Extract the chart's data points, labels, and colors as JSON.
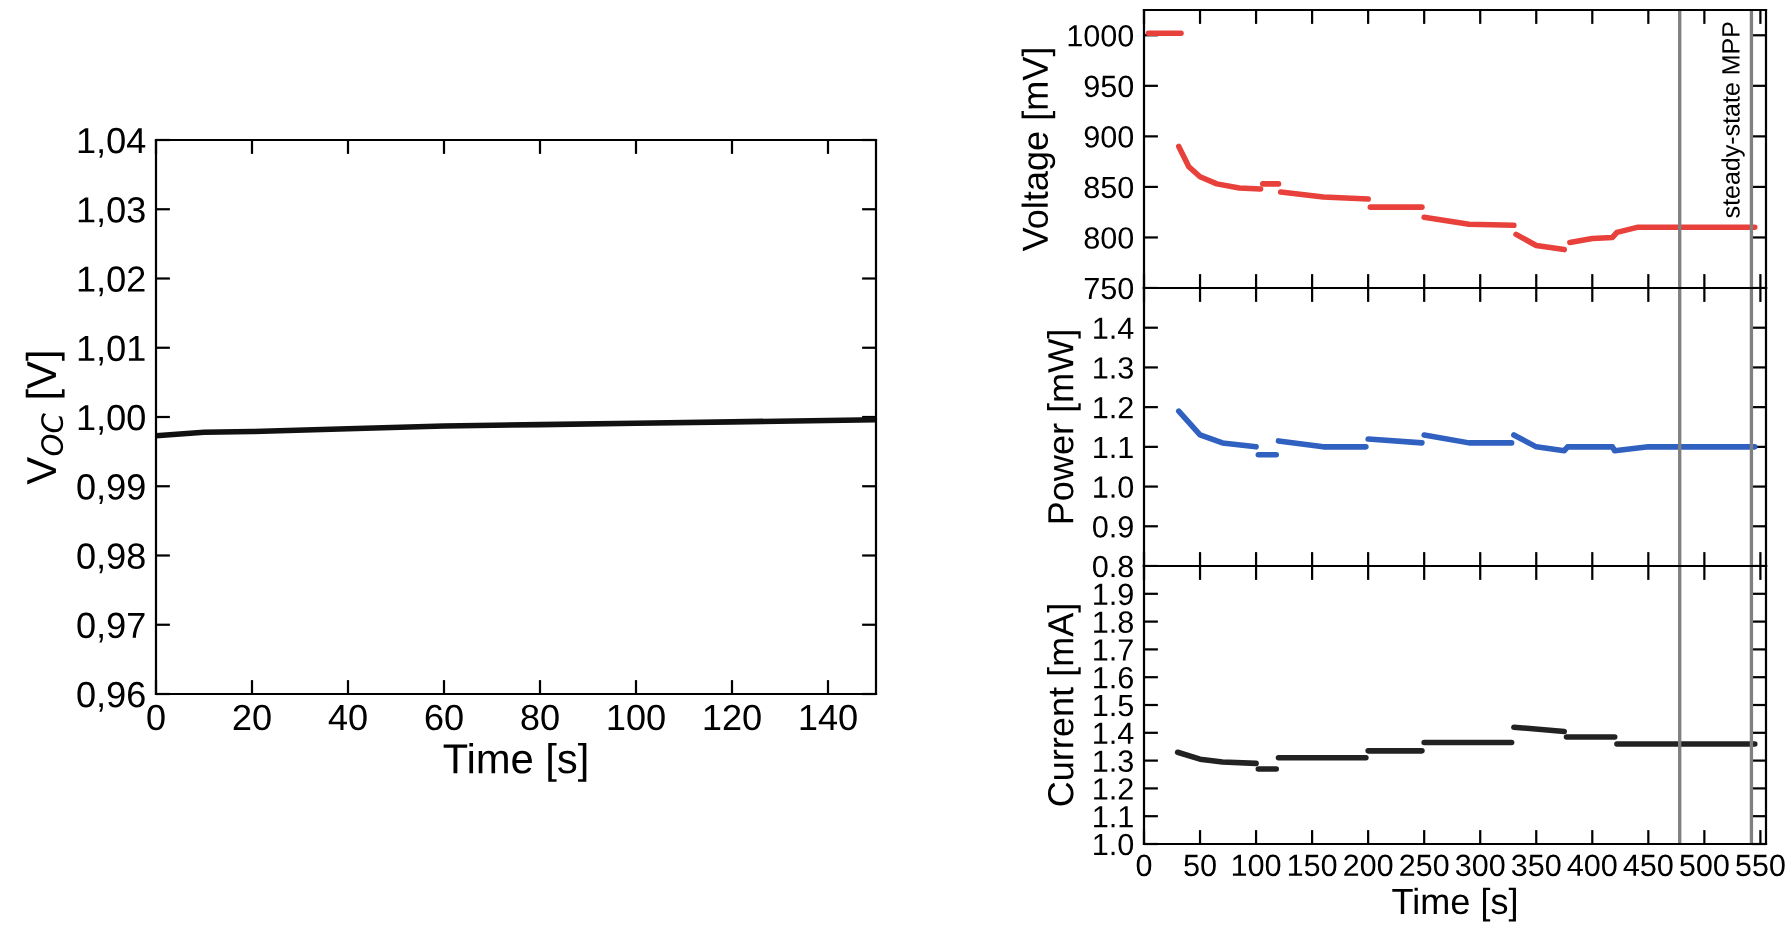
{
  "chart_data": [
    {
      "type": "line",
      "xlabel": "Time [s]",
      "ylabel": "V$_{OC}$ [V]",
      "xlim": [
        0,
        150
      ],
      "xticks": [
        0,
        20,
        40,
        60,
        80,
        100,
        120,
        140
      ],
      "ylim": [
        0.96,
        1.04
      ],
      "yticks": [
        {
          "value": 0.96,
          "label": "0,96"
        },
        {
          "value": 0.97,
          "label": "0,97"
        },
        {
          "value": 0.98,
          "label": "0,98"
        },
        {
          "value": 0.99,
          "label": "0,99"
        },
        {
          "value": 1.0,
          "label": "1,00"
        },
        {
          "value": 1.01,
          "label": "1,01"
        },
        {
          "value": 1.02,
          "label": "1,02"
        },
        {
          "value": 1.03,
          "label": "1,03"
        },
        {
          "value": 1.04,
          "label": "1,04"
        }
      ],
      "series": [
        {
          "color": "#111111",
          "x": [
            0,
            10,
            20,
            40,
            60,
            80,
            100,
            120,
            150
          ],
          "values": [
            0.9973,
            0.9978,
            0.9979,
            0.9983,
            0.9987,
            0.9989,
            0.9991,
            0.9993,
            0.9996
          ]
        }
      ]
    },
    {
      "type": "line",
      "ylabel": "Voltage [mV]",
      "xlim": [
        0,
        555
      ],
      "xticks": [
        0,
        50,
        100,
        150,
        200,
        250,
        300,
        350,
        400,
        450,
        500,
        550
      ],
      "ylim": [
        750,
        1025
      ],
      "yticks": [
        750,
        800,
        850,
        900,
        950,
        1000
      ],
      "tick_labels": "y",
      "ref_lines": [
        {
          "axis": "x",
          "value": 478,
          "color": "#808080"
        },
        {
          "axis": "x",
          "value": 542,
          "color": "#808080",
          "label": "steady-state MPP"
        }
      ],
      "series": [
        {
          "color": "#e8403a",
          "x": [
            4,
            33
          ],
          "values": [
            1002,
            1002
          ]
        },
        {
          "color": "#e8403a",
          "x": [
            31,
            40,
            50,
            65,
            85,
            104
          ],
          "values": [
            890,
            870,
            860,
            853,
            849,
            848
          ]
        },
        {
          "color": "#e8403a",
          "x": [
            106,
            120
          ],
          "values": [
            853,
            853
          ]
        },
        {
          "color": "#e8403a",
          "x": [
            122,
            160,
            200
          ],
          "values": [
            845,
            840,
            838
          ]
        },
        {
          "color": "#e8403a",
          "x": [
            202,
            248
          ],
          "values": [
            830,
            830
          ]
        },
        {
          "color": "#e8403a",
          "x": [
            250,
            290,
            330
          ],
          "values": [
            820,
            813,
            812
          ]
        },
        {
          "color": "#e8403a",
          "x": [
            332,
            350,
            375
          ],
          "values": [
            803,
            792,
            788
          ]
        },
        {
          "color": "#e8403a",
          "x": [
            380,
            400,
            418,
            422,
            440,
            545
          ],
          "values": [
            795,
            799,
            800,
            805,
            810,
            810
          ]
        }
      ]
    },
    {
      "type": "line",
      "ylabel": "Power [mW]",
      "xlim": [
        0,
        555
      ],
      "xticks": [
        0,
        50,
        100,
        150,
        200,
        250,
        300,
        350,
        400,
        450,
        500,
        550
      ],
      "ylim": [
        0.8,
        1.5
      ],
      "yticks": [
        {
          "value": 0.8,
          "label": "0.8"
        },
        {
          "value": 0.9,
          "label": "0.9"
        },
        {
          "value": 1.0,
          "label": "1.0"
        },
        {
          "value": 1.1,
          "label": "1.1"
        },
        {
          "value": 1.2,
          "label": "1.2"
        },
        {
          "value": 1.3,
          "label": "1.3"
        },
        {
          "value": 1.4,
          "label": "1.4"
        }
      ],
      "tick_labels": "y",
      "ref_lines": [
        {
          "axis": "x",
          "value": 478,
          "color": "#808080"
        },
        {
          "axis": "x",
          "value": 542,
          "color": "#808080"
        }
      ],
      "series": [
        {
          "color": "#3060c0",
          "x": [
            31,
            50,
            70,
            100
          ],
          "values": [
            1.19,
            1.13,
            1.11,
            1.1
          ]
        },
        {
          "color": "#3060c0",
          "x": [
            102,
            118
          ],
          "values": [
            1.08,
            1.08
          ]
        },
        {
          "color": "#3060c0",
          "x": [
            120,
            160,
            198
          ],
          "values": [
            1.115,
            1.1,
            1.1
          ]
        },
        {
          "color": "#3060c0",
          "x": [
            200,
            248
          ],
          "values": [
            1.12,
            1.11
          ]
        },
        {
          "color": "#3060c0",
          "x": [
            250,
            290,
            328
          ],
          "values": [
            1.13,
            1.11,
            1.11
          ]
        },
        {
          "color": "#3060c0",
          "x": [
            330,
            350,
            375,
            378,
            400,
            418,
            420,
            450,
            545
          ],
          "values": [
            1.13,
            1.1,
            1.09,
            1.1,
            1.1,
            1.1,
            1.09,
            1.1,
            1.1
          ]
        }
      ]
    },
    {
      "type": "line",
      "xlabel": "Time [s]",
      "ylabel": "Current [mA]",
      "xlim": [
        0,
        555
      ],
      "xticks": [
        0,
        50,
        100,
        150,
        200,
        250,
        300,
        350,
        400,
        450,
        500,
        550
      ],
      "ylim": [
        1.0,
        2.0
      ],
      "yticks": [
        {
          "value": 1.0,
          "label": "1.0"
        },
        {
          "value": 1.1,
          "label": "1.1"
        },
        {
          "value": 1.2,
          "label": "1.2"
        },
        {
          "value": 1.3,
          "label": "1.3"
        },
        {
          "value": 1.4,
          "label": "1.4"
        },
        {
          "value": 1.5,
          "label": "1.5"
        },
        {
          "value": 1.6,
          "label": "1.6"
        },
        {
          "value": 1.7,
          "label": "1.7"
        },
        {
          "value": 1.8,
          "label": "1.8"
        },
        {
          "value": 1.9,
          "label": "1.9"
        }
      ],
      "ref_lines": [
        {
          "axis": "x",
          "value": 478,
          "color": "#808080"
        },
        {
          "axis": "x",
          "value": 542,
          "color": "#808080"
        }
      ],
      "series": [
        {
          "color": "#222222",
          "x": [
            30,
            50,
            70,
            100
          ],
          "values": [
            1.33,
            1.305,
            1.295,
            1.29
          ]
        },
        {
          "color": "#222222",
          "x": [
            102,
            118
          ],
          "values": [
            1.27,
            1.27
          ]
        },
        {
          "color": "#222222",
          "x": [
            120,
            198
          ],
          "values": [
            1.31,
            1.31
          ]
        },
        {
          "color": "#222222",
          "x": [
            200,
            248
          ],
          "values": [
            1.335,
            1.335
          ]
        },
        {
          "color": "#222222",
          "x": [
            250,
            328
          ],
          "values": [
            1.365,
            1.365
          ]
        },
        {
          "color": "#222222",
          "x": [
            330,
            375
          ],
          "values": [
            1.42,
            1.405
          ]
        },
        {
          "color": "#222222",
          "x": [
            377,
            420
          ],
          "values": [
            1.385,
            1.385
          ]
        },
        {
          "color": "#222222",
          "x": [
            422,
            545
          ],
          "values": [
            1.36,
            1.36
          ]
        }
      ]
    }
  ]
}
